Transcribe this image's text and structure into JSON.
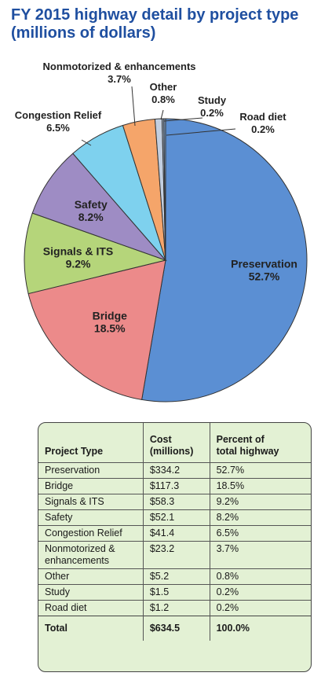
{
  "title": {
    "line1": "FY 2015 highway detail by project type",
    "line2": "(millions of dollars)"
  },
  "colors": {
    "title": "#1f4fa0",
    "table_bg": "#e3f1d4"
  },
  "chart_data": {
    "type": "pie",
    "title": "FY 2015 highway detail by project type (millions of dollars)",
    "slices": [
      {
        "label": "Preservation",
        "percent_label": "52.7%",
        "value": 52.7,
        "color": "#5b8fd3"
      },
      {
        "label": "Bridge",
        "percent_label": "18.5%",
        "value": 18.5,
        "color": "#ec8a8a"
      },
      {
        "label": "Signals & ITS",
        "percent_label": "9.2%",
        "value": 9.2,
        "color": "#b5d57a"
      },
      {
        "label": "Safety",
        "percent_label": "8.2%",
        "value": 8.2,
        "color": "#9e8cc4"
      },
      {
        "label": "Congestion Relief",
        "percent_label": "6.5%",
        "value": 6.5,
        "color": "#7ed1ee"
      },
      {
        "label": "Nonmotorized & enhancements",
        "percent_label": "3.7%",
        "value": 3.7,
        "color": "#f5a56a"
      },
      {
        "label": "Other",
        "percent_label": "0.8%",
        "value": 0.8,
        "color": "#c3cfe0"
      },
      {
        "label": "Study",
        "percent_label": "0.2%",
        "value": 0.2,
        "color": "#9cb1cc"
      },
      {
        "label": "Road diet",
        "percent_label": "0.2%",
        "value": 0.2,
        "color": "#7fa0c8"
      }
    ]
  },
  "table": {
    "headers": {
      "type": "Project Type",
      "cost_line1": "Cost",
      "cost_line2": "(millions)",
      "pct_line1": "Percent of",
      "pct_line2": "total highway"
    },
    "rows": [
      {
        "type": "Preservation",
        "cost": "$334.2",
        "pct": "52.7%"
      },
      {
        "type": "Bridge",
        "cost": "$117.3",
        "pct": "18.5%"
      },
      {
        "type": "Signals & ITS",
        "cost": "$58.3",
        "pct": "9.2%"
      },
      {
        "type": "Safety",
        "cost": "$52.1",
        "pct": "8.2%"
      },
      {
        "type": "Congestion Relief",
        "cost": "$41.4",
        "pct": "6.5%"
      },
      {
        "type": "Nonmotorized & enhancements",
        "cost": "$23.2",
        "pct": "3.7%"
      },
      {
        "type": "Other",
        "cost": "$5.2",
        "pct": "0.8%"
      },
      {
        "type": "Study",
        "cost": "$1.5",
        "pct": "0.2%"
      },
      {
        "type": "Road diet",
        "cost": "$1.2",
        "pct": "0.2%"
      }
    ],
    "total": {
      "type": "Total",
      "cost": "$634.5",
      "pct": "100.0%"
    }
  }
}
